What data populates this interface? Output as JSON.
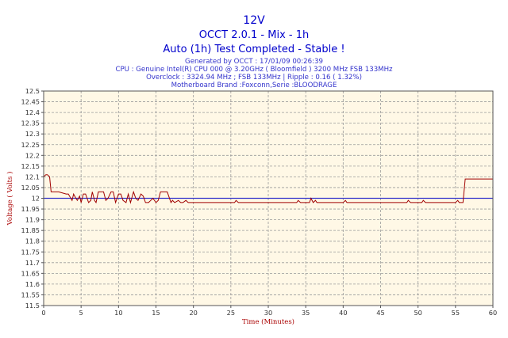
{
  "chart_data": {
    "type": "line",
    "title_lines": [
      "12V",
      "OCCT 2.0.1 - Mix - 1h",
      "Auto (1h) Test Completed - Stable !"
    ],
    "info_lines": [
      "Generated by OCCT : 17/01/09 00:26:39",
      "CPU : Genuine Intel(R) CPU 000 @ 3.20GHz ( Bloomfield ) 3200 MHz FSB 133MHz",
      "Overclock : 3324.94 MHz ; FSB 133MHz | Ripple : 0.16 ( 1.32%)",
      "Motherboard Brand :Foxconn,Serie :BLOODRAGE"
    ],
    "xlabel": "Time (Minutes)",
    "ylabel": "Voltage ( Volts )",
    "xlim": [
      0,
      60
    ],
    "ylim": [
      11.5,
      12.5
    ],
    "xticks": [
      0,
      5,
      10,
      15,
      20,
      25,
      30,
      35,
      40,
      45,
      50,
      55,
      60
    ],
    "yticks": [
      11.5,
      11.55,
      11.6,
      11.65,
      11.7,
      11.75,
      11.8,
      11.85,
      11.9,
      11.95,
      12,
      12.05,
      12.1,
      12.15,
      12.2,
      12.25,
      12.3,
      12.35,
      12.4,
      12.45,
      12.5
    ],
    "xtick_labels": [
      "0",
      "5",
      "10",
      "15",
      "20",
      "25",
      "30",
      "35",
      "40",
      "45",
      "50",
      "55",
      "60"
    ],
    "ytick_labels": [
      "11.5",
      "11.55",
      "11.6",
      "11.65",
      "11.7",
      "11.75",
      "11.8",
      "11.85",
      "11.9",
      "11.95",
      "12",
      "12.05",
      "12.1",
      "12.15",
      "12.2",
      "12.25",
      "12.3",
      "12.35",
      "12.4",
      "12.45",
      "12.5"
    ],
    "grid": true,
    "reference_value": 12,
    "colors": {
      "series": "#a00000",
      "reference": "#3333cc",
      "plot_background": "#fff8e6",
      "grid": "#9a9a9a",
      "title": "#0000cc"
    },
    "series": [
      {
        "x": [
          0,
          0.3,
          0.5,
          0.8,
          1.0,
          1.5,
          2,
          3,
          3.3,
          3.8,
          4,
          4.3,
          4.5,
          4.8,
          5,
          5.3,
          5.6,
          6,
          6.3,
          6.5,
          6.8,
          7,
          7.3,
          7.6,
          8,
          8.3,
          8.6,
          9,
          9.3,
          9.6,
          10,
          10.3,
          10.6,
          11,
          11.3,
          11.6,
          12,
          12.3,
          12.6,
          13,
          13.3,
          13.6,
          14,
          14.3,
          14.6,
          15,
          15.3,
          15.6,
          16,
          16.5,
          17,
          17.2,
          17.5,
          18,
          18.3,
          18.6,
          19,
          19.3,
          19.6,
          20,
          25.5,
          25.7,
          26,
          30,
          33.8,
          34,
          34.3,
          35.5,
          35.7,
          36,
          36.3,
          36.5,
          40,
          40.3,
          40.5,
          43,
          48.5,
          48.7,
          49,
          50.5,
          50.7,
          51,
          52,
          55,
          55.3,
          55.5,
          56,
          56.3,
          57,
          60
        ],
        "values": [
          12.1,
          12.11,
          12.11,
          12.1,
          12.03,
          12.03,
          12.03,
          12.02,
          12.02,
          11.99,
          12.02,
          12.0,
          11.99,
          12.01,
          11.98,
          12.02,
          12.02,
          11.98,
          11.99,
          12.03,
          11.99,
          11.98,
          12.03,
          12.03,
          12.03,
          11.99,
          12.0,
          12.03,
          12.03,
          11.98,
          12.02,
          12.02,
          11.99,
          11.98,
          12.02,
          11.98,
          12.03,
          12.0,
          11.99,
          12.02,
          12.01,
          11.98,
          11.98,
          11.99,
          12.0,
          11.98,
          11.99,
          12.03,
          12.03,
          12.03,
          11.98,
          11.99,
          11.98,
          11.99,
          11.98,
          11.98,
          11.99,
          11.98,
          11.98,
          11.98,
          11.98,
          11.99,
          11.98,
          11.98,
          11.98,
          11.99,
          11.98,
          11.98,
          12.0,
          11.98,
          11.99,
          11.98,
          11.98,
          11.99,
          11.98,
          11.98,
          11.98,
          11.99,
          11.98,
          11.98,
          11.99,
          11.98,
          11.98,
          11.98,
          11.99,
          11.98,
          11.98,
          12.09,
          12.09,
          12.09
        ]
      }
    ]
  }
}
